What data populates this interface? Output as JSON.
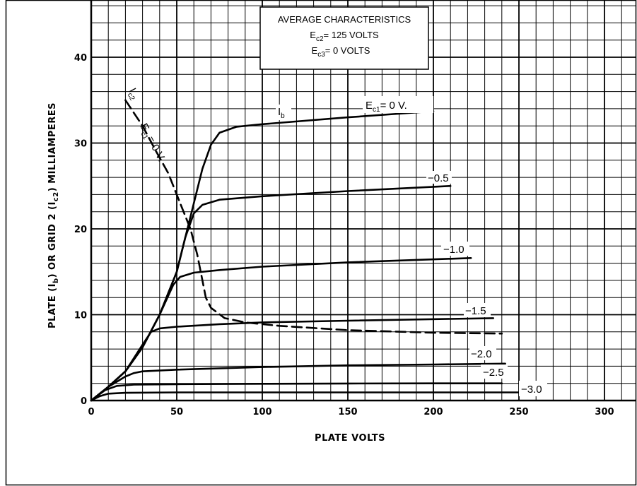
{
  "chart_data": {
    "type": "line",
    "title_box": {
      "line1": "AVERAGE CHARACTERISTICS",
      "ec2_label": "E",
      "ec2_sub": "c2",
      "ec2_value": "= 125 VOLTS",
      "ec3_label": "E",
      "ec3_sub": "c3",
      "ec3_value": "=    0 VOLTS"
    },
    "xlabel": "PLATE VOLTS",
    "ylabel": {
      "part1": "PLATE (I",
      "sub1": "b",
      "part2": ") OR GRID 2 (I",
      "sub2": "c2",
      "part3": ") MILLIAMPERES"
    },
    "xlim": [
      0,
      310
    ],
    "ylim": [
      0,
      45
    ],
    "x_ticks": [
      "0",
      "50",
      "100",
      "150",
      "200",
      "250",
      "300"
    ],
    "y_ticks": [
      "0",
      "10",
      "20",
      "30",
      "40"
    ],
    "x_tick_values": [
      0,
      50,
      100,
      150,
      200,
      250,
      300
    ],
    "y_tick_values": [
      0,
      10,
      20,
      30,
      40
    ],
    "grid": true,
    "series": [
      {
        "name": "E c1 = 0 V. (I b)",
        "style": "solid",
        "points": [
          [
            0,
            0
          ],
          [
            10,
            1.6
          ],
          [
            20,
            3.4
          ],
          [
            30,
            6.2
          ],
          [
            40,
            10
          ],
          [
            50,
            15
          ],
          [
            55,
            19
          ],
          [
            60,
            23
          ],
          [
            65,
            27
          ],
          [
            70,
            29.8
          ],
          [
            75,
            31.2
          ],
          [
            85,
            31.9
          ],
          [
            100,
            32.2
          ],
          [
            150,
            33
          ],
          [
            200,
            33.7
          ]
        ]
      },
      {
        "name": "-0.5",
        "style": "solid",
        "points": [
          [
            0,
            0
          ],
          [
            10,
            1.6
          ],
          [
            20,
            3.4
          ],
          [
            30,
            6.2
          ],
          [
            40,
            10
          ],
          [
            50,
            15
          ],
          [
            55,
            19
          ],
          [
            60,
            21.8
          ],
          [
            65,
            22.8
          ],
          [
            75,
            23.4
          ],
          [
            100,
            23.8
          ],
          [
            150,
            24.4
          ],
          [
            210,
            25
          ]
        ]
      },
      {
        "name": "-1.0",
        "style": "solid",
        "points": [
          [
            0,
            0
          ],
          [
            10,
            1.6
          ],
          [
            20,
            3.4
          ],
          [
            30,
            6.2
          ],
          [
            40,
            10
          ],
          [
            48,
            13.5
          ],
          [
            52,
            14.4
          ],
          [
            60,
            14.9
          ],
          [
            75,
            15.2
          ],
          [
            100,
            15.6
          ],
          [
            150,
            16.1
          ],
          [
            222,
            16.6
          ]
        ]
      },
      {
        "name": "-1.5",
        "style": "solid",
        "points": [
          [
            0,
            0
          ],
          [
            10,
            1.6
          ],
          [
            20,
            3.4
          ],
          [
            30,
            6.5
          ],
          [
            35,
            8
          ],
          [
            40,
            8.4
          ],
          [
            50,
            8.6
          ],
          [
            75,
            8.9
          ],
          [
            100,
            9.1
          ],
          [
            150,
            9.3
          ],
          [
            235,
            9.6
          ]
        ]
      },
      {
        "name": "-2.0",
        "style": "solid",
        "points": [
          [
            0,
            0
          ],
          [
            10,
            1.6
          ],
          [
            20,
            2.8
          ],
          [
            25,
            3.2
          ],
          [
            30,
            3.4
          ],
          [
            50,
            3.6
          ],
          [
            100,
            3.9
          ],
          [
            150,
            4.1
          ],
          [
            200,
            4.2
          ],
          [
            242,
            4.3
          ]
        ]
      },
      {
        "name": "-2.5",
        "style": "solid",
        "points": [
          [
            0,
            0
          ],
          [
            8,
            1.2
          ],
          [
            15,
            1.7
          ],
          [
            25,
            1.85
          ],
          [
            50,
            1.9
          ],
          [
            100,
            1.95
          ],
          [
            150,
            1.98
          ],
          [
            200,
            2.0
          ],
          [
            240,
            2.0
          ]
        ]
      },
      {
        "name": "-3.0",
        "style": "solid",
        "points": [
          [
            0,
            0
          ],
          [
            5,
            0.5
          ],
          [
            10,
            0.8
          ],
          [
            20,
            0.9
          ],
          [
            50,
            0.95
          ],
          [
            150,
            0.95
          ],
          [
            250,
            0.95
          ]
        ]
      },
      {
        "name": "I c2 (E c1 = 0 V.)",
        "style": "dashed",
        "points": [
          [
            20,
            35
          ],
          [
            30,
            32
          ],
          [
            38,
            29
          ],
          [
            45,
            26.5
          ],
          [
            52,
            23
          ],
          [
            58,
            20
          ],
          [
            62,
            17
          ],
          [
            65,
            14
          ],
          [
            67,
            12
          ],
          [
            70,
            10.8
          ],
          [
            78,
            9.6
          ],
          [
            90,
            9.1
          ],
          [
            110,
            8.7
          ],
          [
            150,
            8.2
          ],
          [
            200,
            7.9
          ],
          [
            240,
            7.8
          ]
        ]
      }
    ],
    "curve_labels": {
      "ec1_zero_E": "E",
      "ec1_zero_sub": "c1",
      "ec1_zero_value": "= 0 V.",
      "ib_I": "I",
      "ib_sub": "b",
      "m05": "−0.5",
      "m10": "−1.0",
      "m15": "−1.5",
      "m20": "−2.0",
      "m25": "−2.5",
      "m30": "−3.0",
      "ic2_I": "I",
      "ic2_sub": "c2",
      "ec1_dashed_E": "E",
      "ec1_dashed_sub": "c1",
      "ec1_dashed_value": "= 0 V."
    }
  }
}
